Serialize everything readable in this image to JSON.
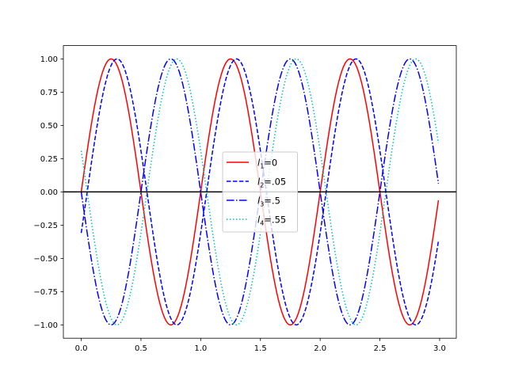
{
  "chart_data": {
    "type": "line",
    "title": "",
    "xlabel": "",
    "ylabel": "",
    "formula": "y = sin(2*pi*(x - l))",
    "x_range": {
      "start": 0,
      "stop": 2.99,
      "step": 0.01
    },
    "xlim": [
      -0.1495,
      3.1395
    ],
    "ylim": [
      -1.1,
      1.1
    ],
    "xticks": [
      "0.0",
      "0.5",
      "1.0",
      "1.5",
      "2.0",
      "2.5",
      "3.0"
    ],
    "xtick_values": [
      0,
      0.5,
      1,
      1.5,
      2,
      2.5,
      3
    ],
    "yticks": [
      "−1.00",
      "−0.75",
      "−0.50",
      "−0.25",
      "0.00",
      "0.25",
      "0.50",
      "0.75",
      "1.00"
    ],
    "ytick_values": [
      -1,
      -0.75,
      -0.5,
      -0.25,
      0,
      0.25,
      0.5,
      0.75,
      1
    ],
    "hline": 0,
    "legend_position": "center",
    "series": [
      {
        "name": "l1=0",
        "sym": "l",
        "sub": "1",
        "val": "=0",
        "lag": 0,
        "color": "#ff0000",
        "dash": ""
      },
      {
        "name": "l2=.05",
        "sym": "l",
        "sub": "2",
        "val": "=.05",
        "lag": 0.05,
        "color": "#0000ff",
        "dash": "5.5,2.4"
      },
      {
        "name": "l3=.5",
        "sym": "l",
        "sub": "3",
        "val": "=.5",
        "lag": 0.5,
        "color": "#0000ff",
        "dash": "9.6,2.4,1.5,2.4"
      },
      {
        "name": "l4=.55",
        "sym": "l",
        "sub": "4",
        "val": "=.55",
        "lag": 0.55,
        "color": "#00bfbf",
        "dash": "1.5,2.5"
      }
    ]
  }
}
